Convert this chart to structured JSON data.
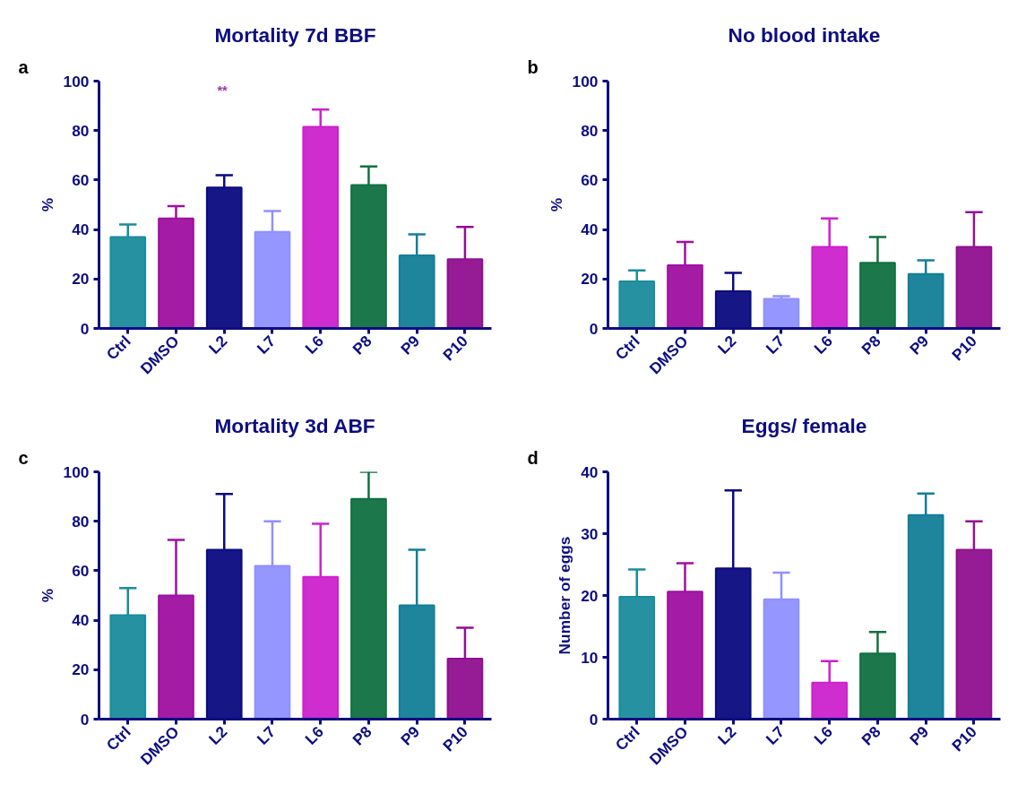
{
  "chart_data": [
    {
      "type": "bar",
      "title": "Mortality 7d BBF",
      "ylabel": "%",
      "annotations": [
        "a",
        "**"
      ],
      "categories": [
        "Ctrl",
        "DMSO",
        "L2",
        "L7",
        "L6",
        "P8",
        "P9",
        "P10"
      ],
      "values": [
        37,
        44.5,
        57,
        39,
        81.5,
        58,
        29.5,
        28
      ],
      "errors": [
        [
          37,
          42
        ],
        [
          44.5,
          49.5
        ],
        [
          57,
          62
        ],
        [
          39,
          47.5
        ],
        [
          81.5,
          88.5
        ],
        [
          58,
          65.5
        ],
        [
          29.5,
          38
        ],
        [
          28,
          41
        ]
      ],
      "colors": [
        "#1a8c9c",
        "#a0109f",
        "#0a0a80",
        "#9090ff",
        "#cc22cc",
        "#107040",
        "#137e98",
        "#901090"
      ],
      "ylim": [
        0,
        100
      ],
      "yticks": [
        0,
        20,
        40,
        60,
        80,
        100
      ],
      "grid": false
    },
    {
      "type": "bar",
      "title": "No blood intake",
      "ylabel": "%",
      "annotations": [
        "b"
      ],
      "categories": [
        "Ctrl",
        "DMSO",
        "L2",
        "L7",
        "L6",
        "P8",
        "P9",
        "P10"
      ],
      "values": [
        19,
        25.5,
        15,
        12,
        33,
        26.5,
        22,
        33
      ],
      "errors": [
        [
          19,
          23.5
        ],
        [
          25.5,
          35
        ],
        [
          15,
          22.5
        ],
        [
          12,
          13
        ],
        [
          33,
          44.5
        ],
        [
          26.5,
          37
        ],
        [
          22,
          27.5
        ],
        [
          33,
          47
        ]
      ],
      "colors": [
        "#1a8c9c",
        "#a0109f",
        "#0a0a80",
        "#9090ff",
        "#cc22cc",
        "#107040",
        "#137e98",
        "#901090"
      ],
      "ylim": [
        0,
        100
      ],
      "yticks": [
        0,
        20,
        40,
        60,
        80,
        100
      ],
      "grid": false
    },
    {
      "type": "bar",
      "title": "Mortality 3d ABF",
      "ylabel": "%",
      "annotations": [
        "c"
      ],
      "categories": [
        "Ctrl",
        "DMSO",
        "L2",
        "L7",
        "L6",
        "P8",
        "P9",
        "P10"
      ],
      "values": [
        42,
        50,
        68.5,
        62,
        57.5,
        89,
        46,
        24.5
      ],
      "errors": [
        [
          42,
          53
        ],
        [
          50,
          72.5
        ],
        [
          68.5,
          91
        ],
        [
          62,
          80
        ],
        [
          57.5,
          79
        ],
        [
          89,
          100
        ],
        [
          46,
          68.5
        ],
        [
          24.5,
          37
        ]
      ],
      "colors": [
        "#1a8c9c",
        "#a0109f",
        "#0a0a80",
        "#9090ff",
        "#cc22cc",
        "#107040",
        "#137e98",
        "#901090"
      ],
      "ylim": [
        0,
        100
      ],
      "yticks": [
        0,
        20,
        40,
        60,
        80,
        100
      ],
      "grid": false
    },
    {
      "type": "bar",
      "title": "Eggs/ female",
      "ylabel": "Number of eggs",
      "annotations": [
        "d"
      ],
      "categories": [
        "Ctrl",
        "DMSO",
        "L2",
        "L7",
        "L6",
        "P8",
        "P9",
        "P10"
      ],
      "values": [
        19.8,
        20.6,
        24.4,
        19.4,
        5.9,
        10.6,
        33,
        27.4
      ],
      "errors": [
        [
          19.8,
          24.2
        ],
        [
          20.6,
          25.2
        ],
        [
          24.4,
          37
        ],
        [
          19.4,
          23.7
        ],
        [
          5.9,
          9.4
        ],
        [
          10.6,
          14.1
        ],
        [
          33,
          36.5
        ],
        [
          27.4,
          32
        ]
      ],
      "colors": [
        "#1a8c9c",
        "#a0109f",
        "#0a0a80",
        "#9090ff",
        "#cc22cc",
        "#107040",
        "#137e98",
        "#901090"
      ],
      "ylim": [
        0,
        40
      ],
      "yticks": [
        0,
        10,
        20,
        30,
        40
      ],
      "grid": false
    }
  ]
}
